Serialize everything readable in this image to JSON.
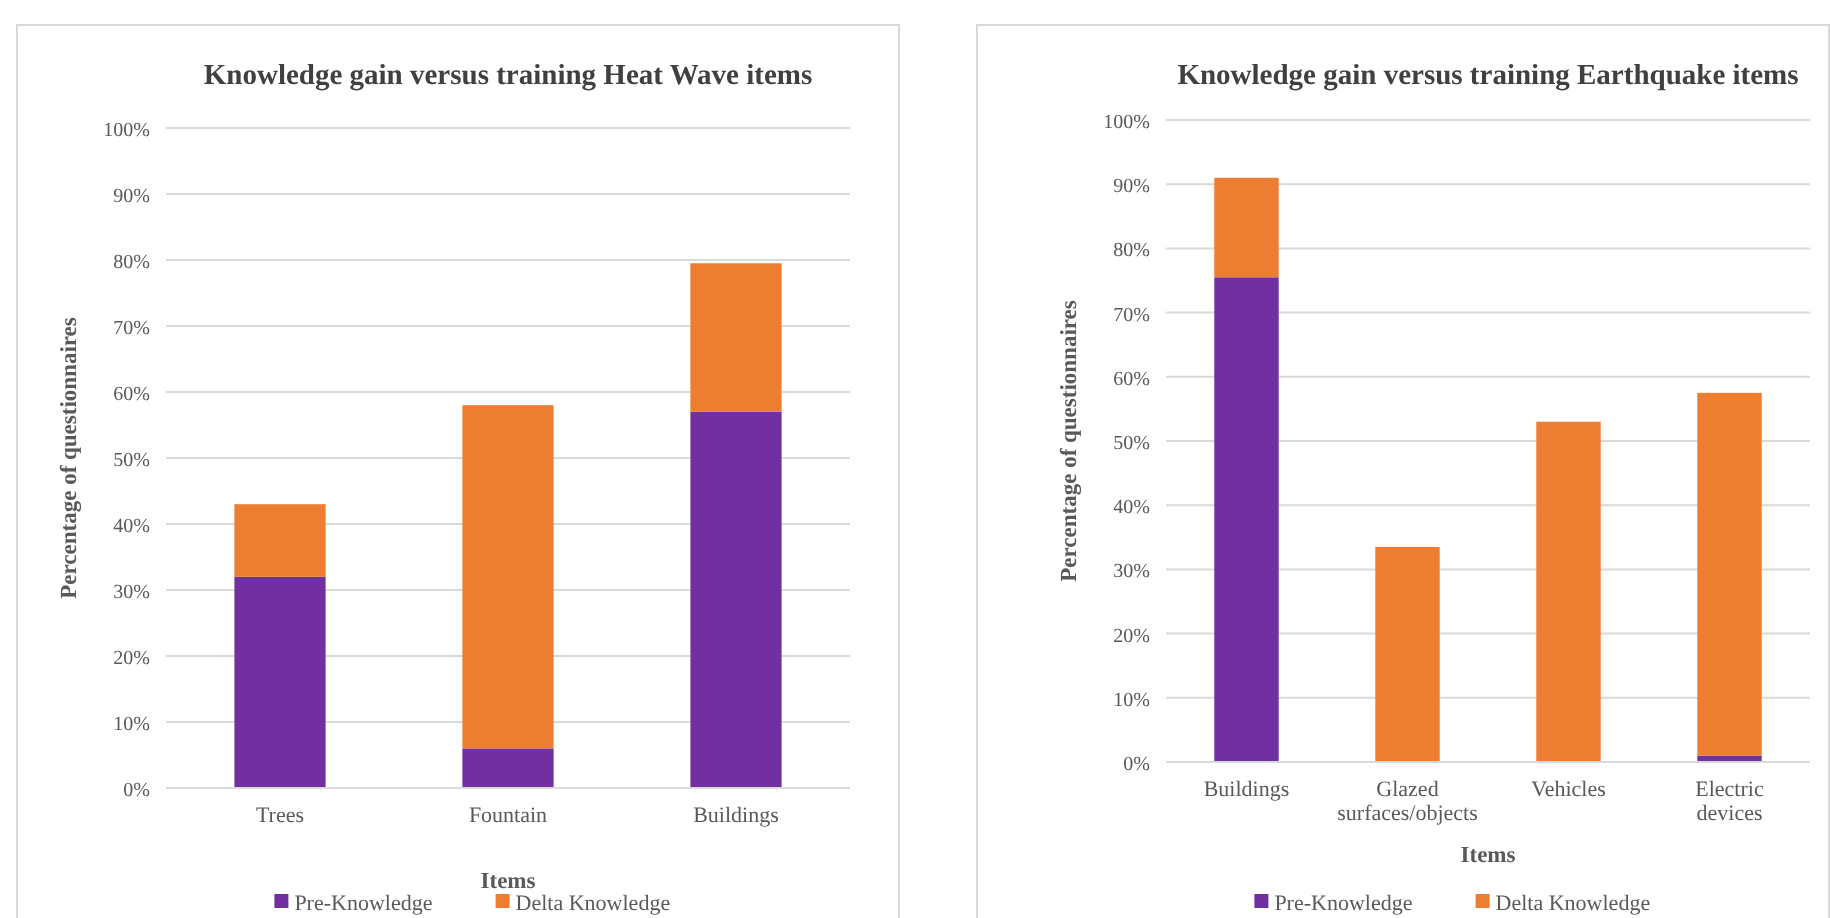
{
  "chart_data": [
    {
      "type": "bar",
      "stacked": true,
      "title": "Knowledge gain versus training Heat Wave items",
      "xlabel": "Items",
      "ylabel": "Percentage of questionnaires",
      "categories": [
        "Trees",
        "Fountain",
        "Buildings"
      ],
      "series": [
        {
          "name": "Pre-Knowledge",
          "color": "#7030a0",
          "values": [
            32,
            6,
            57
          ]
        },
        {
          "name": "Delta Knowledge",
          "color": "#ed7d31",
          "values": [
            11,
            52,
            22.5
          ]
        }
      ],
      "ylim": [
        0,
        100
      ],
      "yticks": [
        {
          "value": 0,
          "label": "0%"
        },
        {
          "value": 10,
          "label": "10%"
        },
        {
          "value": 20,
          "label": "20%"
        },
        {
          "value": 30,
          "label": "30%"
        },
        {
          "value": 40,
          "label": "40%"
        },
        {
          "value": 50,
          "label": "50%"
        },
        {
          "value": 60,
          "label": "60%"
        },
        {
          "value": 70,
          "label": "70%"
        },
        {
          "value": 80,
          "label": "80%"
        },
        {
          "value": 90,
          "label": "90%"
        },
        {
          "value": 100,
          "label": "100%"
        }
      ],
      "grid": "y",
      "legend": "bottom"
    },
    {
      "type": "bar",
      "stacked": true,
      "title": "Knowledge gain versus training Earthquake items",
      "xlabel": "Items",
      "ylabel": "Percentage of questionnaires",
      "categories": [
        "Buildings",
        "Glazed surfaces/objects",
        "Vehicles",
        "Electric devices"
      ],
      "series": [
        {
          "name": "Pre-Knowledge",
          "color": "#7030a0",
          "values": [
            75.5,
            0,
            0,
            1
          ]
        },
        {
          "name": "Delta Knowledge",
          "color": "#ed7d31",
          "values": [
            15.5,
            33.5,
            53,
            56.5
          ]
        }
      ],
      "ylim": [
        0,
        100
      ],
      "yticks": [
        {
          "value": 0,
          "label": "0%"
        },
        {
          "value": 10,
          "label": "10%"
        },
        {
          "value": 20,
          "label": "20%"
        },
        {
          "value": 30,
          "label": "30%"
        },
        {
          "value": 40,
          "label": "40%"
        },
        {
          "value": 50,
          "label": "50%"
        },
        {
          "value": 60,
          "label": "60%"
        },
        {
          "value": 70,
          "label": "70%"
        },
        {
          "value": 80,
          "label": "80%"
        },
        {
          "value": 90,
          "label": "90%"
        },
        {
          "value": 100,
          "label": "100%"
        }
      ],
      "grid": "y",
      "legend": "bottom"
    }
  ]
}
